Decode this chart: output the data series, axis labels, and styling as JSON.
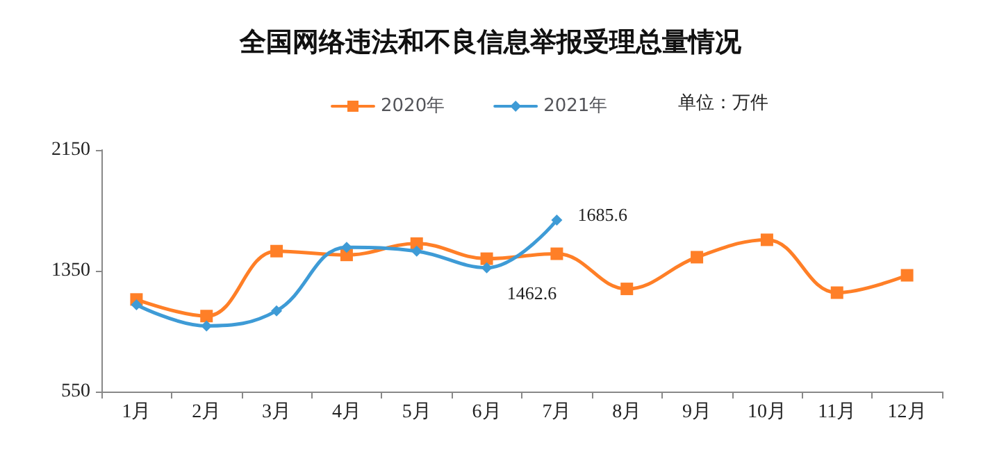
{
  "chart_data": {
    "type": "line",
    "title": "全国网络违法和不良信息举报受理总量情况",
    "categories": [
      "1月",
      "2月",
      "3月",
      "4月",
      "5月",
      "6月",
      "7月",
      "8月",
      "9月",
      "10月",
      "11月",
      "12月"
    ],
    "series": [
      {
        "name": "2020年",
        "color": "#ff7f27",
        "marker": "square",
        "values": [
          1160,
          1050,
          1480,
          1455,
          1530,
          1430,
          1462.6,
          1230,
          1440,
          1555,
          1205,
          1320
        ],
        "value_labels": [
          null,
          null,
          null,
          null,
          null,
          null,
          "1462.6",
          null,
          null,
          null,
          null,
          null
        ]
      },
      {
        "name": "2021年",
        "color": "#3e9bd6",
        "marker": "diamond",
        "values": [
          1125,
          985,
          1085,
          1505,
          1480,
          1370,
          1685.6,
          null,
          null,
          null,
          null,
          null
        ],
        "value_labels": [
          null,
          null,
          null,
          null,
          null,
          null,
          "1685.6",
          null,
          null,
          null,
          null,
          null
        ]
      }
    ],
    "ylim": [
      550,
      2150
    ],
    "yticks": [
      550,
      1350,
      2150
    ],
    "grid": false,
    "legend": "top",
    "annotations": [
      "单位：万件"
    ]
  }
}
